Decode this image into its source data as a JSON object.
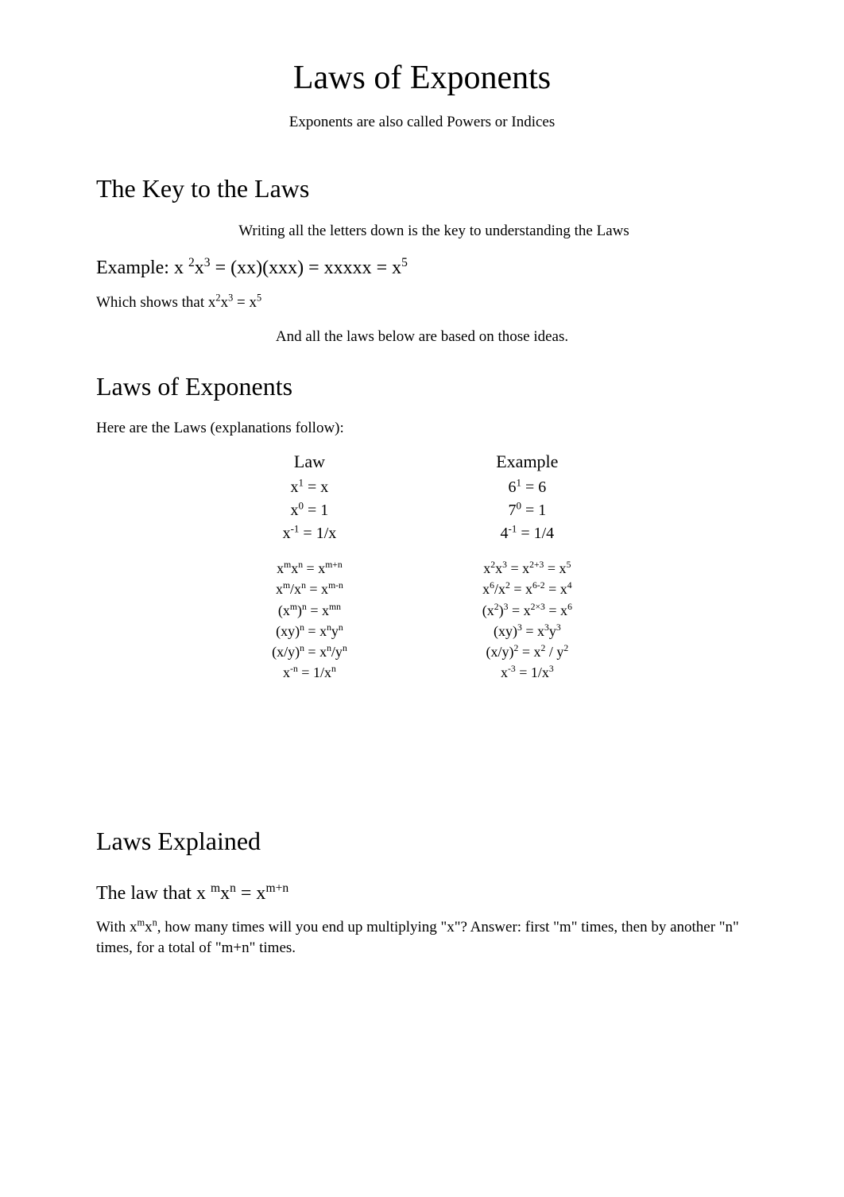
{
  "title": "Laws of Exponents",
  "subtitle": "Exponents are also called Powers or Indices",
  "keyHeading": "The Key to the Laws",
  "keyLine": "Writing all the letters down is the key to understanding the Laws",
  "exampleLabel": "Example: x ",
  "exampleRestHtml": "<sup>2</sup>x<sup>3</sup> = (xx)(xxx) = xxxxx = x<sup>5</sup>",
  "whichShowsHtml": "Which shows that x<sup>2</sup>x<sup>3</sup> = x<sup>5</sup>",
  "andAll": "And all the laws below are based on those ideas.",
  "lawsHeading": "Laws of Exponents",
  "hereAre": "Here are the Laws (explanations follow):",
  "table": {
    "lawHead": "Law",
    "exampleHead": "Example",
    "group1": {
      "laws": [
        "x<sup>1</sup> = x",
        "x<sup>0</sup> = 1",
        "x<sup>-1</sup> = 1/x"
      ],
      "examples": [
        "6<sup>1</sup> = 6",
        "7<sup>0</sup> = 1",
        "4<sup>-1</sup> = 1/4"
      ]
    },
    "group2": {
      "laws": [
        "x<sup>m</sup>x<sup>n</sup> = x<sup>m+n</sup>",
        "x<sup>m</sup>/x<sup>n</sup> = x<sup>m-n</sup>",
        "(x<sup>m</sup>)<sup>n</sup> = x<sup>mn</sup>",
        "(xy)<sup>n</sup> = x<sup>n</sup>y<sup>n</sup>",
        "(x/y)<sup>n</sup> = x<sup>n</sup>/y<sup>n</sup>",
        "x<sup>-n</sup> = 1/x<sup>n</sup>"
      ],
      "examples": [
        "x<sup>2</sup>x<sup>3</sup> = x<sup>2+3</sup> = x<sup>5</sup>",
        "x<sup>6</sup>/x<sup>2</sup> = x<sup>6-2</sup> = x<sup>4</sup>",
        "(x<sup>2</sup>)<sup>3</sup> = x<sup>2×3</sup> = x<sup>6</sup>",
        "(xy)<sup>3</sup> = x<sup>3</sup>y<sup>3</sup>",
        "(x/y)<sup>2</sup> = x<sup>2</sup> / y<sup>2</sup>",
        "x<sup>-3</sup> = 1/x<sup>3</sup>"
      ]
    }
  },
  "explainedHeading": "Laws Explained",
  "firstLawHeadingHtml": "The law that x <sup> m</sup>x<sup>n</sup> = x<sup>m+n</sup>",
  "firstLawBodyHtml": "With x<sup>m</sup>x<sup>n</sup>, how many times will you end up multiplying \"x\"? Answer: first \"m\" times, then by another  \"n\" times, for a total of \"m+n\" times."
}
